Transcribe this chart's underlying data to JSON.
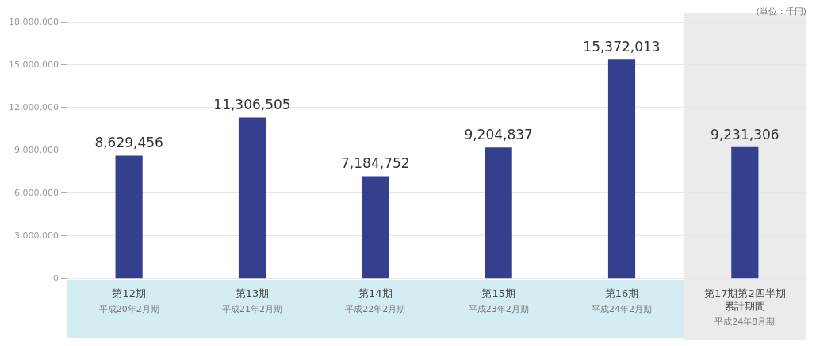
{
  "chart_data": {
    "type": "bar",
    "annotations": [
      "平成20年2月期",
      "平成21年2月期",
      "平成22年2月期",
      "平成23年2月期",
      "平成24年2月期",
      "平成24年8月期",
      "(単位：千円)"
    ],
    "categories": [
      "第12期",
      "第13期",
      "第14期",
      "第15期",
      "第16期",
      "第17期第2四半期累計期間"
    ],
    "values": [
      8629456,
      11306505,
      7184752,
      9204837,
      15372013,
      9231306
    ],
    "color": "#34408e",
    "ylim": [
      0,
      18000000
    ],
    "yticks": [
      0,
      {
        "value": 3000000,
        "label": "3,000,000"
      },
      {
        "value": 6000000,
        "label": "6,000,000"
      },
      {
        "value": 9000000,
        "label": "9,000,000"
      },
      {
        "value": 12000000,
        "label": "12,000,000"
      },
      {
        "value": 15000000,
        "label": "15,000,000"
      },
      {
        "value": 18000000,
        "label": "18,000,000"
      }
    ],
    "bands": [
      {
        "axis": "x",
        "from": "第17期第2四半期累計期間",
        "to": "第17期第2四半期累計期間",
        "color": "#ebebeb"
      }
    ],
    "value_labels": [
      "8,629,456",
      "11,306,505",
      "7,184,752",
      "9,204,837",
      "15,372,013",
      "9,231,306"
    ],
    "grid": "y",
    "legend": false
  }
}
